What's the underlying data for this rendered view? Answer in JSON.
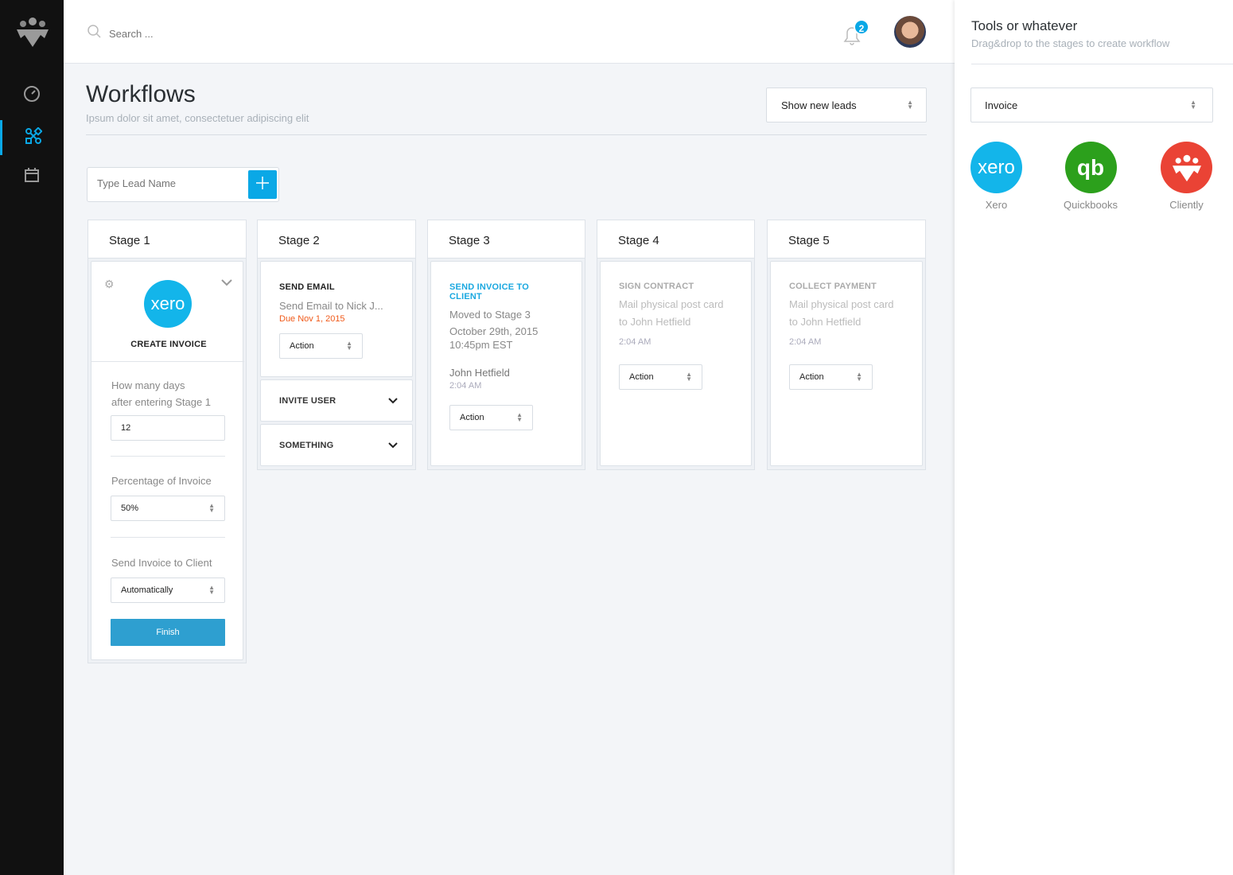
{
  "header": {
    "search_placeholder": "Search ...",
    "notification_count": "2"
  },
  "page": {
    "title": "Workflows",
    "subtitle": "Ipsum dolor sit amet, consectetuer adipiscing elit",
    "filter_select": "Show new leads",
    "lead_placeholder": "Type Lead Name"
  },
  "colors": {
    "accent": "#0aa8e6",
    "sidebar": "#111111",
    "due": "#f05a1a",
    "xero": "#13b5ea",
    "quickbooks": "#2ca01c",
    "cliently": "#ea4335",
    "finish": "#2e9fd0"
  },
  "stages": [
    {
      "title": "Stage 1",
      "card": {
        "logo": "xero",
        "title": "CREATE INVOICE",
        "days_label_1": "How many days",
        "days_label_2": "after entering Stage 1",
        "days_value": "12",
        "percent_label": "Percentage of Invoice",
        "percent_value": "50%",
        "send_label": "Send Invoice to Client",
        "send_value": "Automatically",
        "finish": "Finish"
      }
    },
    {
      "title": "Stage 2",
      "card": {
        "title": "SEND EMAIL",
        "line1": "Send Email to Nick J...",
        "due": "Due Nov 1, 2015",
        "action": "Action"
      },
      "collapsed": [
        {
          "title": "INVITE USER"
        },
        {
          "title": "SOMETHING"
        }
      ]
    },
    {
      "title": "Stage 3",
      "card": {
        "title": "SEND INVOICE TO CLIENT",
        "line1": "Moved to Stage 3",
        "line2": "October 29th, 2015",
        "line3": "10:45pm EST",
        "name": "John Hetfield",
        "time": "2:04 AM",
        "action": "Action"
      }
    },
    {
      "title": "Stage 4",
      "card": {
        "title": "SIGN CONTRACT",
        "line1": "Mail physical post card",
        "line2": "to John Hetfield",
        "time": "2:04 AM",
        "action": "Action"
      }
    },
    {
      "title": "Stage 5",
      "card": {
        "title": "COLLECT PAYMENT",
        "line1": "Mail physical post card",
        "line2": "to John Hetfield",
        "time": "2:04 AM",
        "action": "Action"
      }
    }
  ],
  "tools": {
    "title": "Tools or whatever",
    "subtitle": "Drag&drop to the stages to create workflow",
    "select": "Invoice",
    "items": [
      {
        "label": "Xero",
        "logo_text": "xero"
      },
      {
        "label": "Quickbooks",
        "logo_text": "qb"
      },
      {
        "label": "Cliently"
      }
    ]
  }
}
